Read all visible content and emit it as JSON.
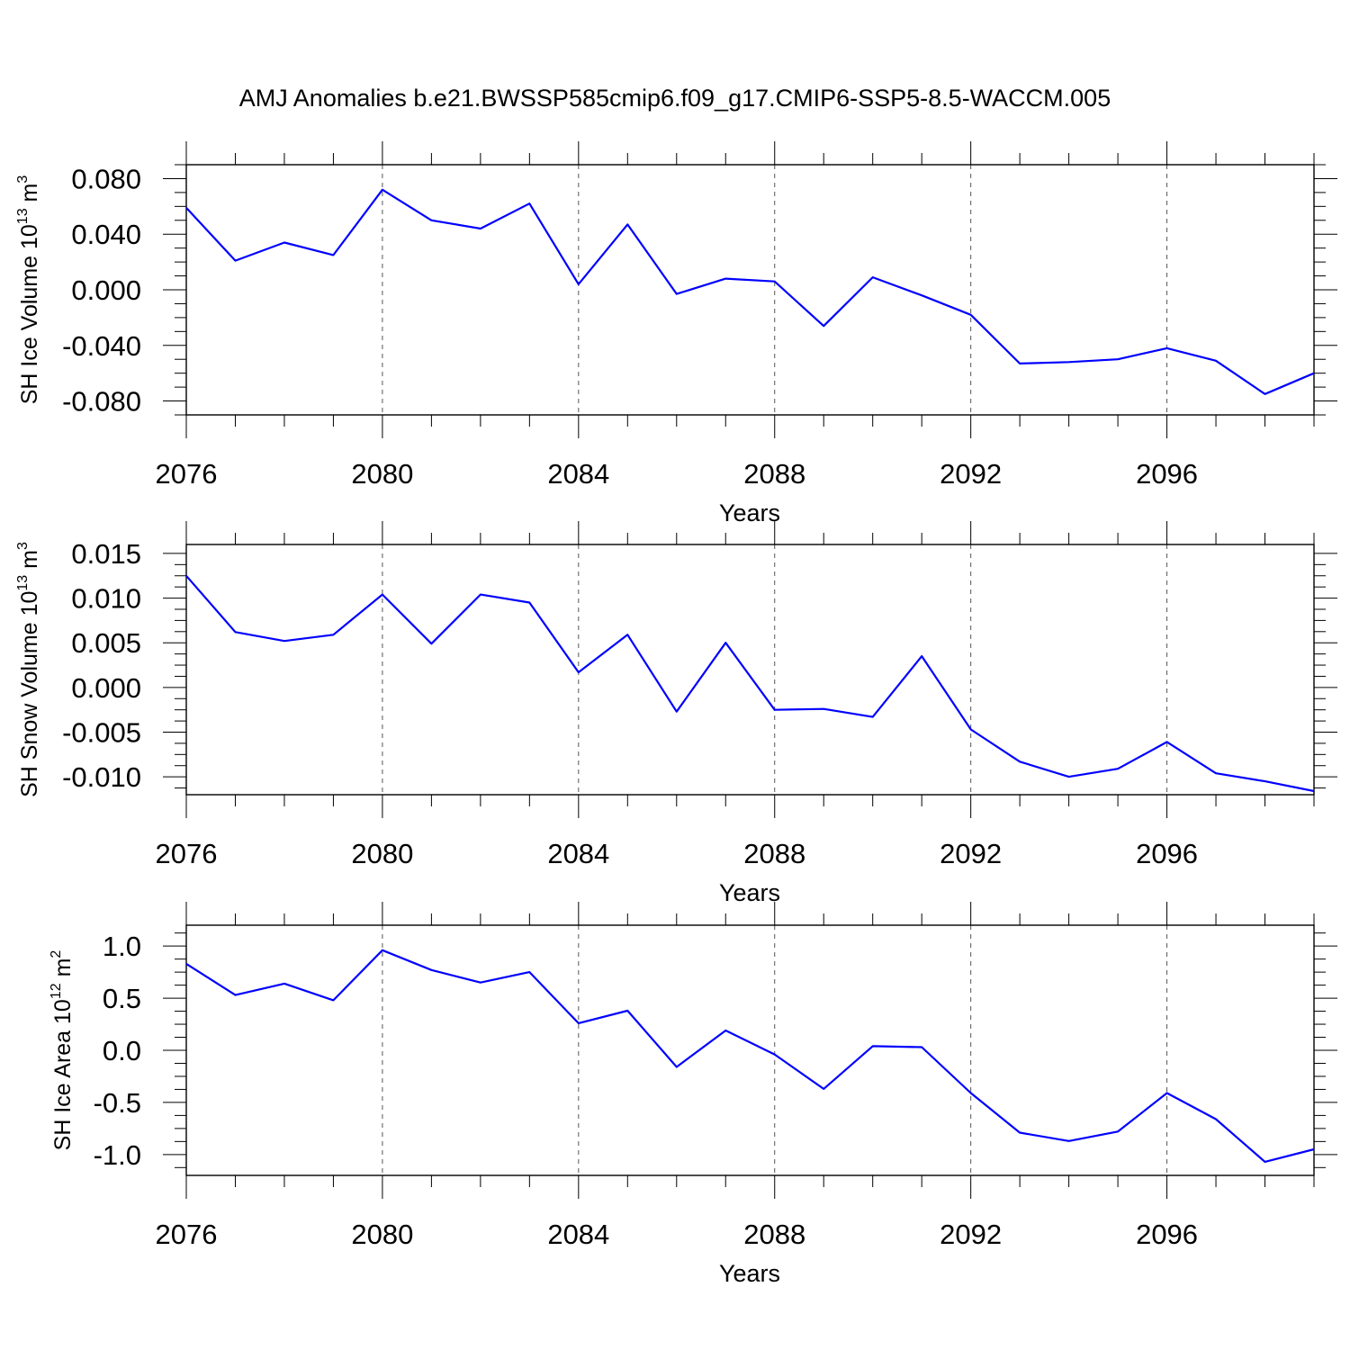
{
  "title": "AMJ Anomalies b.e21.BWSSP585cmip6.f09_g17.CMIP6-SSP5-8.5-WACCM.005",
  "chart_data": [
    {
      "type": "line",
      "ylabel_main": "SH Ice Volume 10",
      "ylabel_exp1": "13",
      "ylabel_unit": " m",
      "ylabel_exp2": "3",
      "xlabel": "Years",
      "xlim": [
        2076,
        2099
      ],
      "ylim": [
        -0.09,
        0.09
      ],
      "xticks": [
        2076,
        2080,
        2084,
        2088,
        2092,
        2096
      ],
      "xtick_labels": [
        "2076",
        "2080",
        "2084",
        "2088",
        "2092",
        "2096"
      ],
      "yticks": [
        0.08,
        0.04,
        0.0,
        -0.04,
        -0.08
      ],
      "ytick_labels": [
        "0.080",
        "0.040",
        "0.000",
        "-0.040",
        "-0.080"
      ],
      "x": [
        2076,
        2077,
        2078,
        2079,
        2080,
        2081,
        2082,
        2083,
        2084,
        2085,
        2086,
        2087,
        2088,
        2089,
        2090,
        2091,
        2092,
        2093,
        2094,
        2095,
        2096,
        2097,
        2098,
        2099
      ],
      "values": [
        0.059,
        0.021,
        0.034,
        0.025,
        0.072,
        0.05,
        0.044,
        0.062,
        0.004,
        0.047,
        -0.003,
        0.008,
        0.006,
        -0.026,
        0.009,
        -0.004,
        -0.018,
        -0.053,
        -0.052,
        -0.05,
        -0.042,
        -0.051,
        -0.075,
        -0.06
      ],
      "grid": "dashed vertical at major x ticks",
      "color": "#0000ff"
    },
    {
      "type": "line",
      "ylabel_main": "SH Snow Volume 10",
      "ylabel_exp1": "13",
      "ylabel_unit": " m",
      "ylabel_exp2": "3",
      "xlabel": "Years",
      "xlim": [
        2076,
        2099
      ],
      "ylim": [
        -0.012,
        0.016
      ],
      "xticks": [
        2076,
        2080,
        2084,
        2088,
        2092,
        2096
      ],
      "xtick_labels": [
        "2076",
        "2080",
        "2084",
        "2088",
        "2092",
        "2096"
      ],
      "yticks": [
        0.015,
        0.01,
        0.005,
        0.0,
        -0.005,
        -0.01
      ],
      "ytick_labels": [
        "0.015",
        "0.010",
        "0.005",
        "0.000",
        "-0.005",
        "-0.010"
      ],
      "x": [
        2076,
        2077,
        2078,
        2079,
        2080,
        2081,
        2082,
        2083,
        2084,
        2085,
        2086,
        2087,
        2088,
        2089,
        2090,
        2091,
        2092,
        2093,
        2094,
        2095,
        2096,
        2097,
        2098,
        2099
      ],
      "values": [
        0.0125,
        0.0062,
        0.0052,
        0.0059,
        0.0104,
        0.0049,
        0.0104,
        0.0095,
        0.0017,
        0.0059,
        -0.0027,
        0.005,
        -0.0025,
        -0.0024,
        -0.0033,
        0.0035,
        -0.0047,
        -0.0083,
        -0.01,
        -0.0091,
        -0.0061,
        -0.0096,
        -0.0105,
        -0.0116
      ],
      "grid": "dashed vertical at major x ticks",
      "color": "#0000ff"
    },
    {
      "type": "line",
      "ylabel_main": "SH Ice Area 10",
      "ylabel_exp1": "12",
      "ylabel_unit": " m",
      "ylabel_exp2": "2",
      "xlabel": "Years",
      "xlim": [
        2076,
        2099
      ],
      "ylim": [
        -1.2,
        1.2
      ],
      "xticks": [
        2076,
        2080,
        2084,
        2088,
        2092,
        2096
      ],
      "xtick_labels": [
        "2076",
        "2080",
        "2084",
        "2088",
        "2092",
        "2096"
      ],
      "yticks": [
        1.0,
        0.5,
        0.0,
        -0.5,
        -1.0
      ],
      "ytick_labels": [
        "1.0",
        "0.5",
        "0.0",
        "-0.5",
        "-1.0"
      ],
      "x": [
        2076,
        2077,
        2078,
        2079,
        2080,
        2081,
        2082,
        2083,
        2084,
        2085,
        2086,
        2087,
        2088,
        2089,
        2090,
        2091,
        2092,
        2093,
        2094,
        2095,
        2096,
        2097,
        2098,
        2099
      ],
      "values": [
        0.83,
        0.53,
        0.64,
        0.48,
        0.96,
        0.77,
        0.65,
        0.75,
        0.26,
        0.38,
        -0.16,
        0.19,
        -0.04,
        -0.37,
        0.04,
        0.03,
        -0.41,
        -0.79,
        -0.87,
        -0.78,
        -0.41,
        -0.66,
        -1.07,
        -0.95
      ],
      "grid": "dashed vertical at major x ticks",
      "color": "#0000ff"
    }
  ]
}
